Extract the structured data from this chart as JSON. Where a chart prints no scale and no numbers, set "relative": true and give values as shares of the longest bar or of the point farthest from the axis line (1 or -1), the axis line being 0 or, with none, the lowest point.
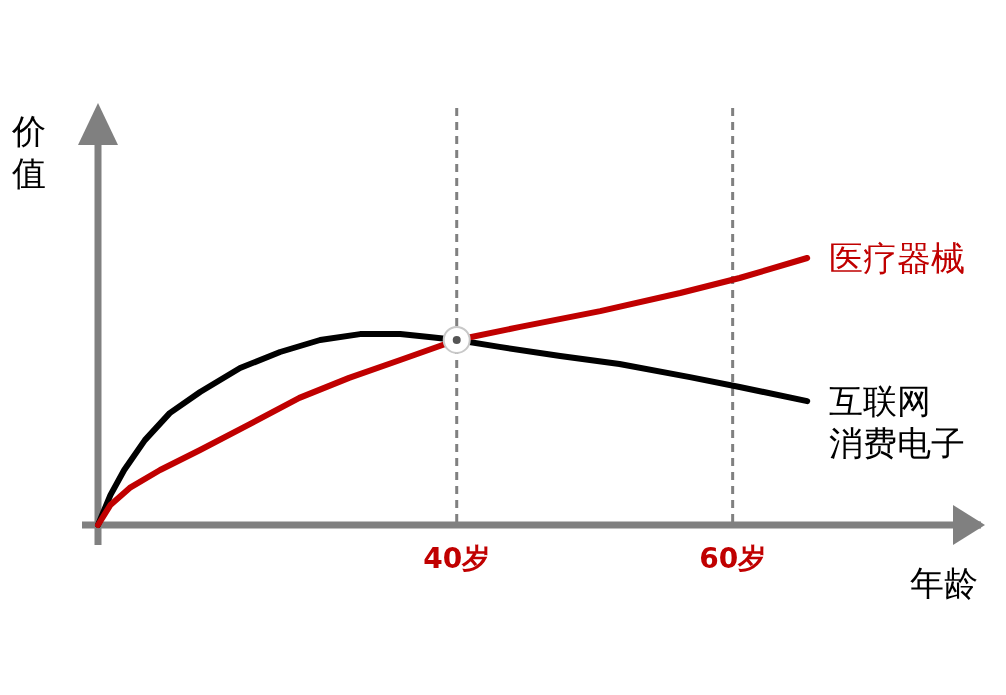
{
  "chart_data": {
    "type": "line",
    "relative": true,
    "xlabel": "年龄",
    "ylabel": "价值",
    "xlim": [
      14,
      78
    ],
    "xticks": [
      {
        "value": 40,
        "label": "40岁"
      },
      {
        "value": 60,
        "label": "60岁"
      }
    ],
    "ref_lines": [
      {
        "axis": "x",
        "value": 40,
        "color": "#808080",
        "line_style": "dashed"
      },
      {
        "axis": "x",
        "value": 60,
        "color": "#808080",
        "line_style": "dashed"
      }
    ],
    "marker": "none",
    "line_style": "solid",
    "series": [
      {
        "name": "互联网消费电子",
        "color": "#000000",
        "x": [
          14.0,
          14.9,
          15.9,
          17.4,
          19.2,
          21.4,
          24.3,
          27.2,
          30.1,
          33.0,
          35.9,
          38.0,
          40,
          43.1,
          47.5,
          51.8,
          56.9,
          60.5,
          65.4
        ],
        "values": [
          0,
          0.112,
          0.206,
          0.318,
          0.419,
          0.498,
          0.588,
          0.648,
          0.693,
          0.715,
          0.715,
          0.704,
          0.693,
          0.667,
          0.633,
          0.603,
          0.554,
          0.517,
          0.464
        ]
      },
      {
        "name": "医疗器械",
        "color": "#c00000",
        "x": [
          14.0,
          14.9,
          16.3,
          18.5,
          21.4,
          25.0,
          28.6,
          32.2,
          35.9,
          40,
          44.6,
          50.4,
          56.2,
          60.5,
          65.4
        ],
        "values": [
          0,
          0.075,
          0.139,
          0.206,
          0.281,
          0.378,
          0.476,
          0.551,
          0.618,
          0.693,
          0.742,
          0.801,
          0.869,
          0.925,
          1.0
        ]
      },
      {
        "type": "scatter",
        "marker": "circle",
        "color": "#555555",
        "x": [
          40
        ],
        "values": [
          0.693
        ]
      }
    ]
  }
}
